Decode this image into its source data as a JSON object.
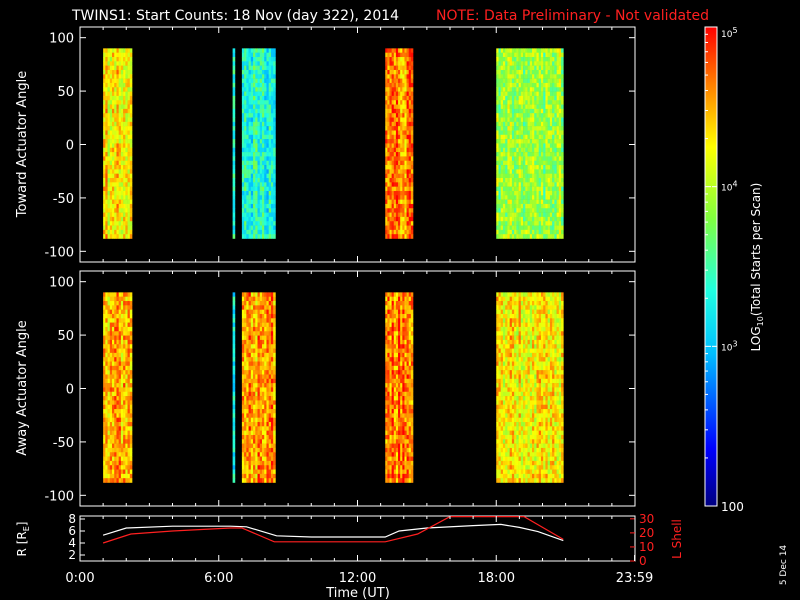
{
  "header": {
    "title": "TWINS1: Start Counts: 18 Nov (day 322), 2014",
    "note": "NOTE: Data Preliminary - Not validated",
    "note_color": "#ff2020"
  },
  "stamp": "5 Dec 14",
  "colorbar": {
    "label_prefix": "LOG",
    "label_sub": "10",
    "label_suffix": "(Total Starts per Scan)",
    "ticks": [
      "100",
      "10",
      "10",
      "10"
    ],
    "tick_exps": [
      "",
      "3",
      "4",
      "5"
    ],
    "range": [
      100,
      100000
    ]
  },
  "chart_data": [
    {
      "type": "heatmap",
      "title": "Toward Actuator Angle",
      "ylabel": "Toward Actuator Angle",
      "yticks": [
        "100",
        "50",
        "0",
        "-50",
        "-100"
      ],
      "ylim": [
        -110,
        110
      ],
      "xlim": [
        0,
        24
      ],
      "data_range_y": [
        -88,
        90
      ],
      "blocks": [
        {
          "start": 1.0,
          "end": 2.25,
          "level": 0.78
        },
        {
          "start": 6.6,
          "end": 6.7,
          "level": 0.4
        },
        {
          "start": 7.0,
          "end": 8.45,
          "level": 0.45
        },
        {
          "start": 13.2,
          "end": 14.4,
          "level": 0.88
        },
        {
          "start": 18.0,
          "end": 20.9,
          "level": 0.62
        }
      ]
    },
    {
      "type": "heatmap",
      "title": "Away Actuator Angle",
      "ylabel": "Away Actuator Angle",
      "yticks": [
        "100",
        "50",
        "0",
        "-50",
        "-100"
      ],
      "ylim": [
        -110,
        110
      ],
      "xlim": [
        0,
        24
      ],
      "data_range_y": [
        -88,
        90
      ],
      "blocks": [
        {
          "start": 1.0,
          "end": 2.25,
          "level": 0.82
        },
        {
          "start": 6.6,
          "end": 6.7,
          "level": 0.4
        },
        {
          "start": 7.0,
          "end": 8.45,
          "level": 0.85
        },
        {
          "start": 13.2,
          "end": 14.4,
          "level": 0.9
        },
        {
          "start": 18.0,
          "end": 20.9,
          "level": 0.75
        }
      ]
    },
    {
      "type": "line",
      "xlabel": "Time (UT)",
      "ylabel": "R [R",
      "ylabel_sub": "E",
      "ylabel_end": "]",
      "y2label": "L Shell",
      "xticks": [
        "0:00",
        "6:00",
        "12:00",
        "18:00",
        "23:59"
      ],
      "xtick_values": [
        0,
        6,
        12,
        18,
        23.98
      ],
      "xlim": [
        0,
        24
      ],
      "yticks": [
        "8",
        "6",
        "4",
        "2"
      ],
      "ylim": [
        1,
        8.5
      ],
      "y2ticks": [
        "30",
        "20",
        "10",
        "0"
      ],
      "y2lim": [
        0,
        32
      ],
      "series": [
        {
          "color": "#ffffff",
          "x": [
            1.0,
            2.0,
            4.0,
            6.5,
            7.2,
            8.5,
            10.0,
            12.0,
            13.2,
            13.8,
            15.0,
            17.0,
            18.2,
            19.0,
            19.8,
            20.9
          ],
          "y": [
            5.3,
            6.5,
            6.8,
            6.8,
            6.7,
            5.2,
            5.0,
            5.0,
            5.0,
            6.0,
            6.5,
            6.9,
            7.1,
            6.6,
            5.9,
            4.4
          ]
        },
        {
          "color": "#ff2020",
          "x": [
            1.0,
            2.2,
            4.0,
            6.5,
            7.0,
            8.4,
            10.0,
            12.0,
            13.2,
            14.6,
            16.0,
            19.2,
            20.9
          ],
          "y": [
            4.0,
            5.5,
            6.0,
            6.5,
            6.5,
            4.2,
            4.2,
            4.2,
            4.2,
            5.5,
            8.4,
            8.4,
            4.6
          ]
        }
      ]
    }
  ]
}
